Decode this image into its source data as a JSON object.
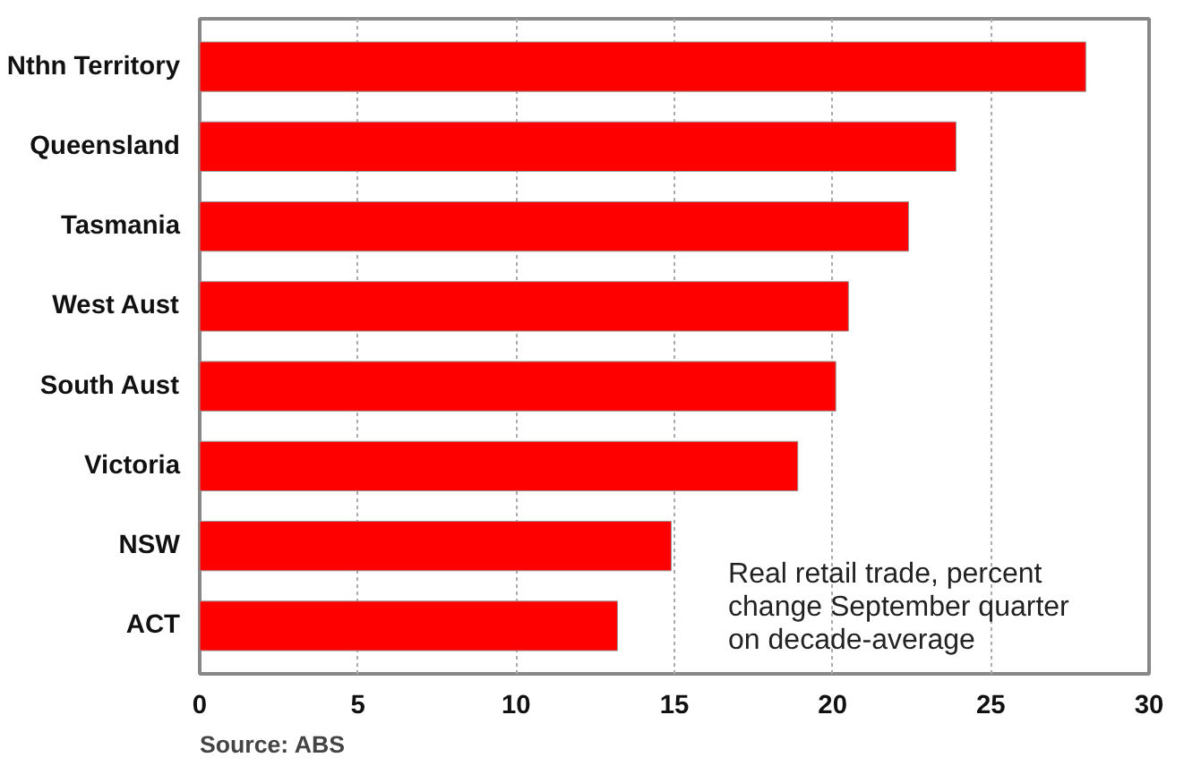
{
  "chart_data": {
    "type": "bar",
    "orientation": "horizontal",
    "categories": [
      "Nthn Territory",
      "Queensland",
      "Tasmania",
      "West Aust",
      "South Aust",
      "Victoria",
      "NSW",
      "ACT"
    ],
    "values": [
      28.0,
      23.9,
      22.4,
      20.5,
      20.1,
      18.9,
      14.9,
      13.2
    ],
    "color": "#ff0000",
    "xlim": [
      0,
      30
    ],
    "xticks": [
      0,
      5,
      10,
      15,
      20,
      25,
      30
    ],
    "grid": "x",
    "annotations": [
      "Real retail trade, percent\nchange September quarter\non decade-average",
      "Source: ABS"
    ]
  }
}
